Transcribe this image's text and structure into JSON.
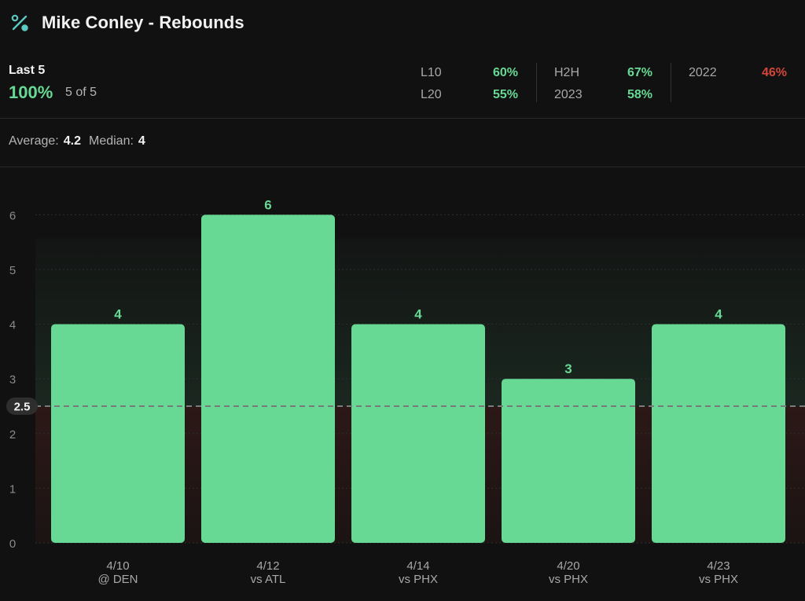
{
  "header": {
    "title": "Mike Conley - Rebounds",
    "icon": "percent-icon",
    "icon_color": "#5cc9c0"
  },
  "summary": {
    "last_label": "Last 5",
    "last_pct": "100%",
    "last_count": "5 of 5",
    "stats": [
      {
        "label": "L10",
        "value": "60%",
        "status": "good"
      },
      {
        "label": "L20",
        "value": "55%",
        "status": "good"
      },
      {
        "label": "H2H",
        "value": "67%",
        "status": "good"
      },
      {
        "label": "2023",
        "value": "58%",
        "status": "good"
      },
      {
        "label": "2022",
        "value": "46%",
        "status": "bad"
      }
    ]
  },
  "averages": {
    "average_label": "Average:",
    "average_value": "4.2",
    "median_label": "Median:",
    "median_value": "4"
  },
  "colors": {
    "good": "#67d994",
    "bad": "#d2463a",
    "bar": "#67d994",
    "line": "#7a7a7a"
  },
  "chart_data": {
    "type": "bar",
    "categories": [
      "4/10\n@ DEN",
      "4/12\nvs ATL",
      "4/14\nvs PHX",
      "4/20\nvs PHX",
      "4/23\nvs PHX"
    ],
    "values": [
      4,
      6,
      4,
      3,
      4
    ],
    "data_labels": [
      "4",
      "6",
      "4",
      "3",
      "4"
    ],
    "yticks": [
      "0",
      "1",
      "2",
      "3",
      "4",
      "5",
      "6"
    ],
    "ylim": [
      0,
      6
    ],
    "line": {
      "value": 2.5,
      "label": "2.5",
      "style": "dashed"
    },
    "grid": true,
    "legend": "none",
    "title": "",
    "xlabel": "",
    "ylabel": ""
  }
}
